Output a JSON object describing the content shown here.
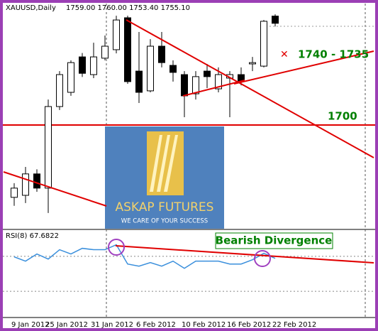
{
  "chart_data": {
    "type": "candlestick",
    "title": "XAUUSD,Daily",
    "header_values": "1759.00 1760.00 1753.40 1755.10",
    "categories": [
      "9 Jan 2012",
      null,
      null,
      "25 Jan 2012",
      null,
      null,
      null,
      "31 Jan 2012",
      null,
      null,
      null,
      "6 Feb 2012",
      null,
      null,
      null,
      "10 Feb 2012",
      null,
      null,
      null,
      "16 Feb 2012",
      null,
      null,
      null,
      "22 Feb 2012"
    ],
    "open": [
      1660.8,
      1661.9,
      1673.5,
      1665.8,
      1710.0,
      1717.7,
      1736.9,
      1727.3,
      1736.2,
      1740.8,
      1758.1,
      1729.2,
      1718.5,
      1742.7,
      1732.3,
      1727.3,
      1716.9,
      1729.2,
      1719.6,
      1725.4,
      1727.3,
      1733.1,
      1731.9,
      1759.0
    ],
    "high": [
      1668.5,
      1677.3,
      1676.0,
      1713.8,
      1729.2,
      1735.0,
      1739.0,
      1744.6,
      1748.5,
      1759.2,
      1759.2,
      1750.4,
      1746.5,
      1750.4,
      1735.0,
      1729.2,
      1729.2,
      1733.1,
      1731.2,
      1729.2,
      1731.2,
      1736.9,
      1756.9,
      1760.0
    ],
    "low": [
      1656.2,
      1657.7,
      1663.8,
      1652.3,
      1708.1,
      1715.8,
      1726.0,
      1725.4,
      1735.0,
      1738.8,
      1722.3,
      1711.9,
      1717.7,
      1731.2,
      1723.5,
      1704.2,
      1713.8,
      1720.0,
      1717.7,
      1704.2,
      1721.5,
      1729.2,
      1731.2,
      1753.4
    ],
    "close": [
      1665.8,
      1673.5,
      1665.8,
      1710.0,
      1727.3,
      1733.8,
      1728.0,
      1736.9,
      1742.7,
      1756.9,
      1723.5,
      1717.7,
      1742.7,
      1733.8,
      1728.5,
      1715.8,
      1726.2,
      1726.2,
      1727.3,
      1727.3,
      1723.5,
      1733.8,
      1756.2,
      1755.1
    ],
    "up_color": "#ffffff",
    "down_color": "#000000",
    "ylim": [
      1643.8,
      1765.8
    ],
    "level": {
      "value": 1700,
      "label": "1700",
      "color": "#e00000"
    },
    "annotations": [
      "1740 - 1735",
      "Bearish Divergence"
    ],
    "logo": {
      "title": "ASKAP FUTURES",
      "subtitle": "WE CARE OF YOUR SUCCESS"
    },
    "rsi": {
      "label": "RSI(8) 67.6822",
      "color": "#3a8fdc",
      "ylim": [
        0,
        100
      ],
      "levels": [
        70,
        30
      ],
      "values": [
        69.4,
        64.5,
        72.7,
        66.9,
        77.6,
        72.7,
        79.2,
        77.6,
        77.6,
        83.3,
        61.2,
        58.8,
        62.9,
        58.8,
        64.5,
        56.3,
        64.5,
        64.5,
        64.5,
        61.2,
        61.2,
        66.1,
        73.5,
        67.6822
      ]
    }
  }
}
